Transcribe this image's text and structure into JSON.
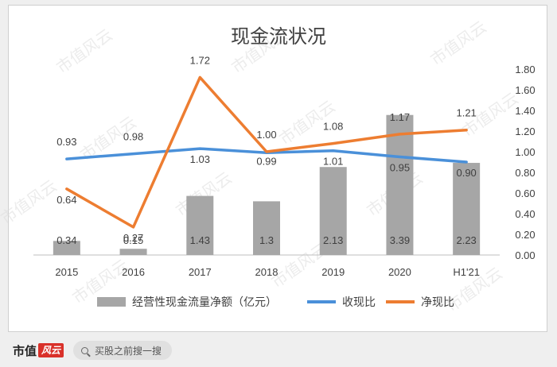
{
  "chart_data": {
    "type": "bar+line",
    "title": "现金流状况",
    "categories": [
      "2015",
      "2016",
      "2017",
      "2018",
      "2019",
      "2020",
      "H1'21"
    ],
    "series": [
      {
        "name": "经营性现金流量净额（亿元）",
        "type": "bar",
        "axis": "left",
        "color": "#a6a6a6",
        "values": [
          0.34,
          0.15,
          1.43,
          1.3,
          2.13,
          3.39,
          2.23
        ],
        "labels": [
          "0.34",
          "0.15",
          "1.43",
          "1.3",
          "2.13",
          "3.39",
          "2.23"
        ]
      },
      {
        "name": "收现比",
        "type": "line",
        "axis": "right",
        "color": "#4a90d9",
        "values": [
          0.93,
          0.98,
          1.03,
          0.99,
          1.01,
          0.95,
          0.9
        ],
        "labels": [
          "0.93",
          "0.98",
          "1.03",
          "0.99",
          "1.01",
          "0.95",
          "0.90"
        ]
      },
      {
        "name": "净现比",
        "type": "line",
        "axis": "right",
        "color": "#ed7d31",
        "values": [
          0.64,
          0.27,
          1.72,
          1.0,
          1.08,
          1.17,
          1.21
        ],
        "labels": [
          "0.64",
          "0.27",
          "1.72",
          "1.00",
          "1.08",
          "1.17",
          "1.21"
        ]
      }
    ],
    "right_axis": {
      "ylim": [
        0,
        1.8
      ],
      "ticks": [
        "0.00",
        "0.20",
        "0.40",
        "0.60",
        "0.80",
        "1.00",
        "1.20",
        "1.40",
        "1.60",
        "1.80"
      ]
    },
    "left_axis": {
      "ylim": [
        0,
        4.5
      ]
    },
    "legend_position": "bottom"
  },
  "watermark": "市值风云",
  "footer": {
    "brand": "市值",
    "brand_logo": "风云",
    "search_placeholder": "买股之前搜一搜"
  }
}
